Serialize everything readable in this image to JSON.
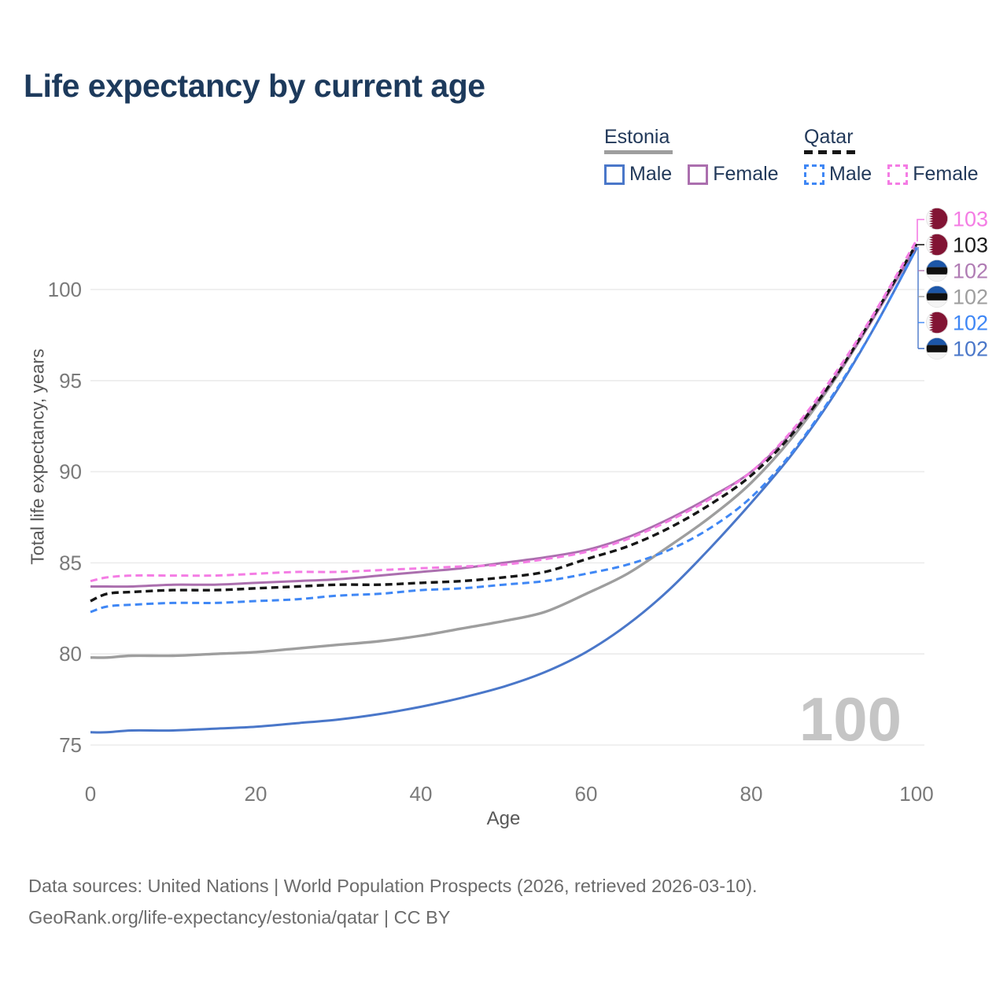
{
  "legend": {
    "groups": [
      {
        "label": "Estonia",
        "line_style": "solid",
        "line_color": "#9e9e9e",
        "items": [
          {
            "label": "Male",
            "color": "#4a77c9"
          },
          {
            "label": "Female",
            "color": "#ab6fae"
          }
        ]
      },
      {
        "label": "Qatar",
        "line_style": "dashed",
        "line_color": "#161616",
        "items": [
          {
            "label": "Male",
            "color": "#3f87f5"
          },
          {
            "label": "Female",
            "color": "#f47ce4"
          }
        ]
      }
    ]
  },
  "footer": {
    "line1": "Data sources: United Nations | World Population Prospects (2026, retrieved 2026-03-10).",
    "line2": "GeoRank.org/life-expectancy/estonia/qatar | CC BY"
  },
  "chart_data": {
    "type": "line",
    "title": "Life expectancy by current age",
    "xlabel": "Age",
    "ylabel": "Total life expectancy, years",
    "x_ticks": [
      0,
      20,
      40,
      60,
      80,
      100
    ],
    "y_ticks": [
      75,
      80,
      85,
      90,
      95,
      100
    ],
    "xlim": [
      0,
      100
    ],
    "ylim": [
      74.5,
      103.5
    ],
    "grid": "horizontal",
    "legend_position": "top-right",
    "watermark": "100",
    "ages": [
      0,
      2,
      5,
      10,
      15,
      20,
      25,
      30,
      35,
      40,
      45,
      50,
      55,
      60,
      65,
      70,
      75,
      80,
      85,
      90,
      95,
      100
    ],
    "series": [
      {
        "name": "Estonia Both sexes",
        "country": "Estonia",
        "sex": "Both",
        "color": "#9e9e9e",
        "dashed": false,
        "end_label": "102",
        "values": [
          79.8,
          79.8,
          79.9,
          79.9,
          80.0,
          80.1,
          80.3,
          80.5,
          80.7,
          81.0,
          81.4,
          81.8,
          82.3,
          83.3,
          84.4,
          85.9,
          87.5,
          89.4,
          91.9,
          95.0,
          98.6,
          102.4
        ]
      },
      {
        "name": "Estonia Male",
        "country": "Estonia",
        "sex": "Male",
        "color": "#4a77c9",
        "dashed": false,
        "end_label": "102",
        "values": [
          75.7,
          75.7,
          75.8,
          75.8,
          75.9,
          76.0,
          76.2,
          76.4,
          76.7,
          77.1,
          77.6,
          78.2,
          79.0,
          80.1,
          81.6,
          83.5,
          85.8,
          88.3,
          91.0,
          94.2,
          98.0,
          102.25
        ]
      },
      {
        "name": "Estonia Female",
        "country": "Estonia",
        "sex": "Female",
        "color": "#ab6fae",
        "dashed": false,
        "end_label": "102",
        "values": [
          83.7,
          83.7,
          83.7,
          83.8,
          83.8,
          83.9,
          84.0,
          84.1,
          84.3,
          84.5,
          84.7,
          85.0,
          85.3,
          85.7,
          86.4,
          87.4,
          88.6,
          90.0,
          92.2,
          95.1,
          98.6,
          102.4
        ]
      },
      {
        "name": "Qatar Male",
        "country": "Qatar",
        "sex": "Male",
        "color": "#3f87f5",
        "dashed": true,
        "end_label": "102",
        "values": [
          82.3,
          82.6,
          82.7,
          82.8,
          82.8,
          82.9,
          83.0,
          83.2,
          83.3,
          83.5,
          83.6,
          83.8,
          84.0,
          84.4,
          84.9,
          85.7,
          86.9,
          88.6,
          91.1,
          94.3,
          98.0,
          102.3
        ]
      },
      {
        "name": "Qatar Both sexes",
        "country": "Qatar",
        "sex": "Both",
        "color": "#161616",
        "dashed": true,
        "end_label": "103",
        "values": [
          82.9,
          83.3,
          83.4,
          83.5,
          83.5,
          83.6,
          83.7,
          83.8,
          83.8,
          83.9,
          84.0,
          84.2,
          84.5,
          85.2,
          85.9,
          86.9,
          88.2,
          89.8,
          92.1,
          95.1,
          98.7,
          102.5
        ]
      },
      {
        "name": "Qatar Female",
        "country": "Qatar",
        "sex": "Female",
        "color": "#f47ce4",
        "dashed": true,
        "end_label": "103",
        "values": [
          84.0,
          84.2,
          84.3,
          84.3,
          84.3,
          84.4,
          84.5,
          84.5,
          84.6,
          84.7,
          84.8,
          84.9,
          85.2,
          85.6,
          86.3,
          87.3,
          88.5,
          90.0,
          92.3,
          95.3,
          98.8,
          102.7
        ]
      }
    ],
    "end_labels": [
      {
        "value": "103",
        "flag": "qatar",
        "color": "#f47ce4",
        "series": "Qatar Female"
      },
      {
        "value": "103",
        "flag": "qatar",
        "color": "#1a1a1a",
        "series": "Qatar Both sexes"
      },
      {
        "value": "102",
        "flag": "estonia",
        "color": "#b07cb4",
        "series": "Estonia Female"
      },
      {
        "value": "102",
        "flag": "estonia",
        "color": "#9e9e9e",
        "series": "Estonia Both sexes"
      },
      {
        "value": "102",
        "flag": "qatar",
        "color": "#3f87f5",
        "series": "Qatar Male"
      },
      {
        "value": "102",
        "flag": "estonia",
        "color": "#4a77c9",
        "series": "Estonia Male"
      }
    ]
  }
}
